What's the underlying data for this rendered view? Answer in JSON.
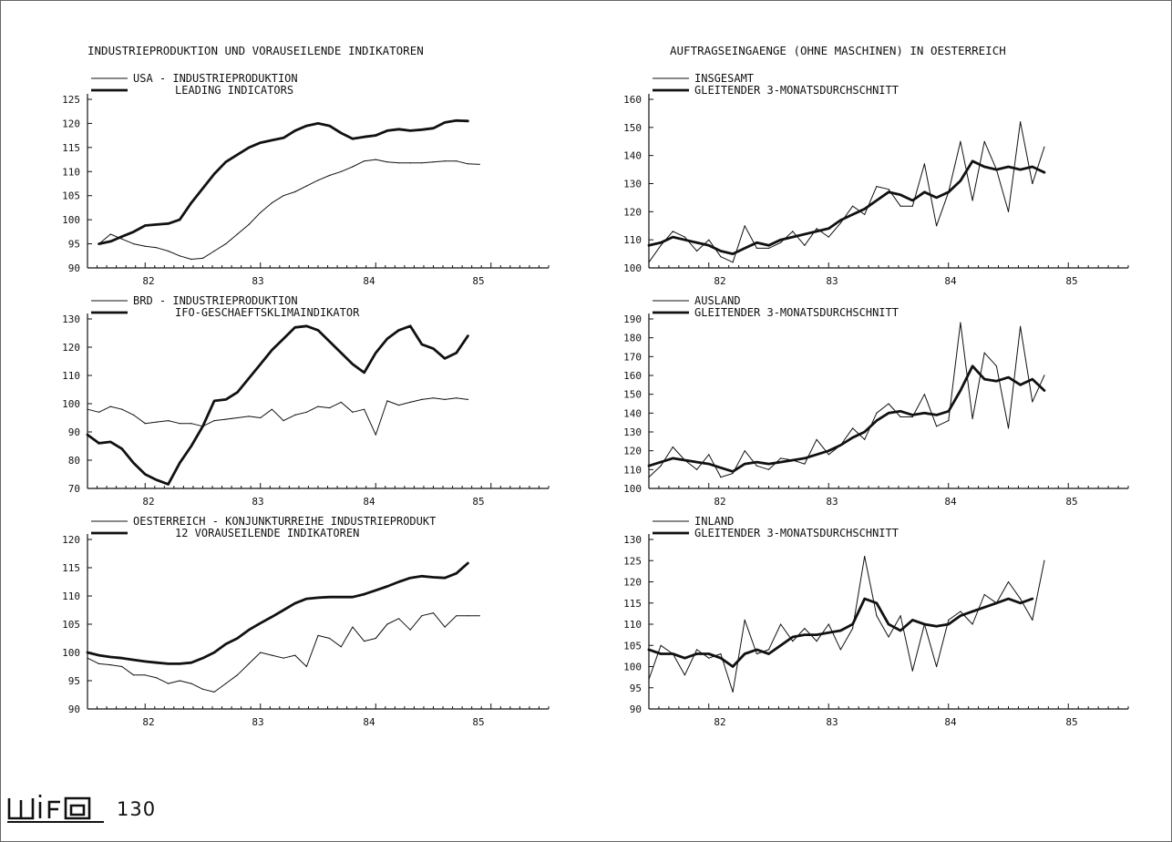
{
  "left_title": "INDUSTRIEPRODUKTION UND VORAUSEILENDE INDIKATOREN",
  "right_title": "AUFTRAGSEINGAENGE (OHNE MASCHINEN) IN OESTERREICH",
  "page_number": "130",
  "logo_text": "wifo",
  "chart_data": [
    {
      "type": "line",
      "legend": [
        "USA - INDUSTRIEPRODUKTION",
        "LEADING INDICATORS"
      ],
      "ylim": [
        90,
        125
      ],
      "yticks": [
        90,
        95,
        100,
        105,
        110,
        115,
        120,
        125
      ],
      "xticks": [
        "82",
        "83",
        "84",
        "85"
      ],
      "series": [
        {
          "name": "USA - INDUSTRIEPRODUKTION",
          "weight": "thin",
          "x": [
            81.6,
            81.7,
            81.8,
            81.9,
            82.0,
            82.1,
            82.2,
            82.3,
            82.4,
            82.5,
            82.6,
            82.7,
            82.8,
            82.9,
            83.0,
            83.1,
            83.2,
            83.3,
            83.4,
            83.5,
            83.6,
            83.7,
            83.8,
            83.9,
            84.0,
            84.1,
            84.2,
            84.3,
            84.4,
            84.5,
            84.6,
            84.7,
            84.8,
            84.9
          ],
          "values": [
            95,
            97,
            96,
            95,
            94.5,
            94.2,
            93.5,
            92.5,
            91.8,
            92,
            93.5,
            95,
            97,
            99,
            101.5,
            103.5,
            105,
            105.8,
            107,
            108.2,
            109.2,
            110,
            111,
            112.2,
            112.5,
            112,
            111.8,
            111.8,
            111.8,
            112,
            112.2,
            112.2,
            111.6,
            111.5
          ]
        },
        {
          "name": "LEADING INDICATORS",
          "weight": "thick",
          "x": [
            81.6,
            81.7,
            81.8,
            81.9,
            82.0,
            82.1,
            82.2,
            82.3,
            82.4,
            82.5,
            82.6,
            82.7,
            82.8,
            82.9,
            83.0,
            83.1,
            83.2,
            83.3,
            83.4,
            83.5,
            83.6,
            83.7,
            83.8,
            83.9,
            84.0,
            84.1,
            84.2,
            84.3,
            84.4,
            84.5,
            84.6,
            84.7,
            84.8
          ],
          "values": [
            95,
            95.5,
            96.5,
            97.5,
            98.8,
            99,
            99.2,
            100,
            103.5,
            106.5,
            109.5,
            112,
            113.5,
            115,
            116,
            116.5,
            117,
            118.5,
            119.5,
            120,
            119.5,
            118,
            116.8,
            117.2,
            117.5,
            118.5,
            118.8,
            118.5,
            118.7,
            119,
            120.2,
            120.6,
            120.5
          ]
        }
      ]
    },
    {
      "type": "line",
      "legend": [
        "BRD - INDUSTRIEPRODUKTION",
        "IFO-GESCHAEFTSKLIMAINDIKATOR"
      ],
      "ylim": [
        70,
        130
      ],
      "yticks": [
        70,
        80,
        90,
        100,
        110,
        120,
        130
      ],
      "xticks": [
        "82",
        "83",
        "84",
        "85"
      ],
      "series": [
        {
          "name": "BRD - INDUSTRIEPRODUKTION",
          "weight": "thin",
          "x": [
            81.5,
            81.6,
            81.7,
            81.8,
            81.9,
            82.0,
            82.1,
            82.2,
            82.3,
            82.4,
            82.5,
            82.6,
            82.7,
            82.8,
            82.9,
            83.0,
            83.1,
            83.2,
            83.3,
            83.4,
            83.5,
            83.6,
            83.7,
            83.8,
            83.9,
            84.0,
            84.1,
            84.2,
            84.3,
            84.4,
            84.5,
            84.6,
            84.7,
            84.8
          ],
          "values": [
            98,
            97,
            99,
            98,
            96,
            93,
            93.5,
            94,
            93,
            93,
            92,
            94,
            94.5,
            95,
            95.5,
            95,
            98,
            94,
            96,
            97,
            99,
            98.5,
            100.5,
            97,
            98,
            89,
            101,
            99.5,
            100.5,
            101.5,
            102,
            101.5,
            102,
            101.5
          ]
        },
        {
          "name": "IFO-GESCHAEFTSKLIMAINDIKATOR",
          "weight": "thick",
          "x": [
            81.5,
            81.6,
            81.7,
            81.8,
            81.9,
            82.0,
            82.1,
            82.2,
            82.3,
            82.4,
            82.5,
            82.6,
            82.7,
            82.8,
            82.9,
            83.0,
            83.1,
            83.2,
            83.3,
            83.4,
            83.5,
            83.6,
            83.7,
            83.8,
            83.9,
            84.0,
            84.1,
            84.2,
            84.3,
            84.4,
            84.5,
            84.6,
            84.7,
            84.8
          ],
          "values": [
            89,
            86,
            86.5,
            84,
            79,
            75,
            73,
            71.5,
            79,
            85,
            92,
            101,
            101.5,
            104,
            109,
            114,
            119,
            123,
            127,
            127.5,
            126,
            122,
            118,
            114,
            111,
            118,
            123,
            126,
            127.5,
            121,
            119.5,
            116,
            118,
            124
          ]
        }
      ]
    },
    {
      "type": "line",
      "legend": [
        "OESTERREICH - KONJUNKTURREIHE INDUSTRIEPRODUKT",
        "12 VORAUSEILENDE INDIKATOREN"
      ],
      "ylim": [
        90,
        120
      ],
      "yticks": [
        90,
        95,
        100,
        105,
        110,
        115,
        120
      ],
      "xticks": [
        "82",
        "83",
        "84",
        "85"
      ],
      "series": [
        {
          "name": "OESTERREICH - KONJUNKTURREIHE INDUSTRIEPRODUKT",
          "weight": "thin",
          "x": [
            81.5,
            81.6,
            81.7,
            81.8,
            81.9,
            82.0,
            82.1,
            82.2,
            82.3,
            82.4,
            82.5,
            82.6,
            82.7,
            82.8,
            82.9,
            83.0,
            83.1,
            83.2,
            83.3,
            83.4,
            83.5,
            83.6,
            83.7,
            83.8,
            83.9,
            84.0,
            84.1,
            84.2,
            84.3,
            84.4,
            84.5,
            84.6,
            84.7,
            84.8,
            84.9
          ],
          "values": [
            99,
            98,
            97.8,
            97.5,
            96,
            96,
            95.5,
            94.5,
            95,
            94.5,
            93.5,
            93,
            94.5,
            96,
            98,
            100,
            99.5,
            99,
            99.5,
            97.5,
            103,
            102.5,
            101,
            104.5,
            102,
            102.5,
            105,
            106,
            104,
            106.5,
            107,
            104.5,
            106.5,
            106.5,
            106.5
          ]
        },
        {
          "name": "12 VORAUSEILENDE INDIKATOREN",
          "weight": "thick",
          "x": [
            81.5,
            81.6,
            81.7,
            81.8,
            81.9,
            82.0,
            82.1,
            82.2,
            82.3,
            82.4,
            82.5,
            82.6,
            82.7,
            82.8,
            82.9,
            83.0,
            83.1,
            83.2,
            83.3,
            83.4,
            83.5,
            83.6,
            83.7,
            83.8,
            83.9,
            84.0,
            84.1,
            84.2,
            84.3,
            84.4,
            84.5,
            84.6,
            84.7,
            84.8
          ],
          "values": [
            100,
            99.5,
            99.2,
            99,
            98.7,
            98.4,
            98.2,
            98,
            98,
            98.2,
            99,
            100,
            101.5,
            102.5,
            104,
            105.2,
            106.3,
            107.5,
            108.7,
            109.5,
            109.7,
            109.8,
            109.8,
            109.8,
            110.3,
            111,
            111.7,
            112.5,
            113.2,
            113.5,
            113.3,
            113.2,
            114,
            115.8
          ]
        }
      ]
    },
    {
      "type": "line",
      "legend": [
        "INSGESAMT",
        "GLEITENDER 3-MONATSDURCHSCHNITT"
      ],
      "ylim": [
        100,
        160
      ],
      "yticks": [
        100,
        110,
        120,
        130,
        140,
        150,
        160
      ],
      "xticks": [
        "82",
        "83",
        "84",
        "85"
      ],
      "series": [
        {
          "name": "INSGESAMT",
          "weight": "thin",
          "x": [
            81.5,
            81.6,
            81.7,
            81.8,
            81.9,
            82.0,
            82.1,
            82.2,
            82.3,
            82.4,
            82.5,
            82.6,
            82.7,
            82.8,
            82.9,
            83.0,
            83.1,
            83.2,
            83.3,
            83.4,
            83.5,
            83.6,
            83.7,
            83.8,
            83.9,
            84.0,
            84.1,
            84.2,
            84.3,
            84.4,
            84.5,
            84.6,
            84.7,
            84.8
          ],
          "values": [
            102,
            108,
            113,
            111,
            106,
            110,
            104,
            102,
            115,
            107,
            107,
            109,
            113,
            108,
            114,
            111,
            116,
            122,
            119,
            129,
            128,
            122,
            122,
            137,
            115,
            127,
            145,
            124,
            145,
            135,
            120,
            152,
            130,
            143
          ]
        },
        {
          "name": "GLEITENDER 3-MONATSDURCHSCHNITT",
          "weight": "thick",
          "x": [
            81.5,
            81.6,
            81.7,
            81.8,
            81.9,
            82.0,
            82.1,
            82.2,
            82.3,
            82.4,
            82.5,
            82.6,
            82.7,
            82.8,
            82.9,
            83.0,
            83.1,
            83.2,
            83.3,
            83.4,
            83.5,
            83.6,
            83.7,
            83.8,
            83.9,
            84.0,
            84.1,
            84.2,
            84.3,
            84.4,
            84.5,
            84.6,
            84.7,
            84.8
          ],
          "values": [
            108,
            109,
            111,
            110,
            109,
            108,
            106,
            105,
            107,
            109,
            108,
            110,
            111,
            112,
            113,
            114,
            117,
            119,
            121,
            124,
            127,
            126,
            124,
            127,
            125,
            127,
            131,
            138,
            136,
            135,
            136,
            135,
            136,
            134
          ]
        }
      ]
    },
    {
      "type": "line",
      "legend": [
        "AUSLAND",
        "GLEITENDER 3-MONATSDURCHSCHNITT"
      ],
      "ylim": [
        100,
        190
      ],
      "yticks": [
        100,
        110,
        120,
        130,
        140,
        150,
        160,
        170,
        180,
        190
      ],
      "xticks": [
        "82",
        "83",
        "84",
        "85"
      ],
      "series": [
        {
          "name": "AUSLAND",
          "weight": "thin",
          "x": [
            81.5,
            81.6,
            81.7,
            81.8,
            81.9,
            82.0,
            82.1,
            82.2,
            82.3,
            82.4,
            82.5,
            82.6,
            82.7,
            82.8,
            82.9,
            83.0,
            83.1,
            83.2,
            83.3,
            83.4,
            83.5,
            83.6,
            83.7,
            83.8,
            83.9,
            84.0,
            84.1,
            84.2,
            84.3,
            84.4,
            84.5,
            84.6,
            84.7,
            84.8
          ],
          "values": [
            106,
            112,
            122,
            115,
            110,
            118,
            106,
            108,
            120,
            112,
            110,
            116,
            115,
            113,
            126,
            118,
            123,
            132,
            126,
            140,
            145,
            138,
            138,
            150,
            133,
            136,
            188,
            137,
            172,
            165,
            132,
            186,
            146,
            160
          ]
        },
        {
          "name": "GLEITENDER 3-MONATSDURCHSCHNITT",
          "weight": "thick",
          "x": [
            81.5,
            81.6,
            81.7,
            81.8,
            81.9,
            82.0,
            82.1,
            82.2,
            82.3,
            82.4,
            82.5,
            82.6,
            82.7,
            82.8,
            82.9,
            83.0,
            83.1,
            83.2,
            83.3,
            83.4,
            83.5,
            83.6,
            83.7,
            83.8,
            83.9,
            84.0,
            84.1,
            84.2,
            84.3,
            84.4,
            84.5,
            84.6,
            84.7,
            84.8
          ],
          "values": [
            112,
            114,
            116,
            115,
            114,
            113,
            111,
            109,
            113,
            114,
            113,
            114,
            115,
            116,
            118,
            120,
            123,
            127,
            130,
            136,
            140,
            141,
            139,
            140,
            139,
            141,
            152,
            165,
            158,
            157,
            159,
            155,
            158,
            152
          ]
        }
      ]
    },
    {
      "type": "line",
      "legend": [
        "INLAND",
        "GLEITENDER 3-MONATSDURCHSCHNITT"
      ],
      "ylim": [
        90,
        130
      ],
      "yticks": [
        90,
        95,
        100,
        105,
        110,
        115,
        120,
        125,
        130
      ],
      "xticks": [
        "82",
        "83",
        "84",
        "85"
      ],
      "series": [
        {
          "name": "INLAND",
          "weight": "thin",
          "x": [
            81.5,
            81.6,
            81.7,
            81.8,
            81.9,
            82.0,
            82.1,
            82.2,
            82.3,
            82.4,
            82.5,
            82.6,
            82.7,
            82.8,
            82.9,
            83.0,
            83.1,
            83.2,
            83.3,
            83.4,
            83.5,
            83.6,
            83.7,
            83.8,
            83.9,
            84.0,
            84.1,
            84.2,
            84.3,
            84.4,
            84.5,
            84.6,
            84.7,
            84.8
          ],
          "values": [
            97,
            105,
            103,
            98,
            104,
            102,
            103,
            94,
            111,
            103,
            104,
            110,
            106,
            109,
            106,
            110,
            104,
            109,
            126,
            112,
            107,
            112,
            99,
            110,
            100,
            111,
            113,
            110,
            117,
            115,
            120,
            116,
            111,
            125
          ]
        },
        {
          "name": "GLEITENDER 3-MONATSDURCHSCHNITT",
          "weight": "thick",
          "x": [
            81.5,
            81.6,
            81.7,
            81.8,
            81.9,
            82.0,
            82.1,
            82.2,
            82.3,
            82.4,
            82.5,
            82.6,
            82.7,
            82.8,
            82.9,
            83.0,
            83.1,
            83.2,
            83.3,
            83.4,
            83.5,
            83.6,
            83.7,
            83.8,
            83.9,
            84.0,
            84.1,
            84.2,
            84.3,
            84.4,
            84.5,
            84.6,
            84.7
          ],
          "values": [
            104,
            103,
            103,
            102,
            103,
            103,
            102,
            100,
            103,
            104,
            103,
            105,
            107,
            107.5,
            107.5,
            108,
            108.5,
            110,
            116,
            115,
            110,
            108.5,
            111,
            110,
            109.5,
            110,
            112,
            113,
            114,
            115,
            116,
            115,
            116
          ]
        }
      ]
    }
  ]
}
